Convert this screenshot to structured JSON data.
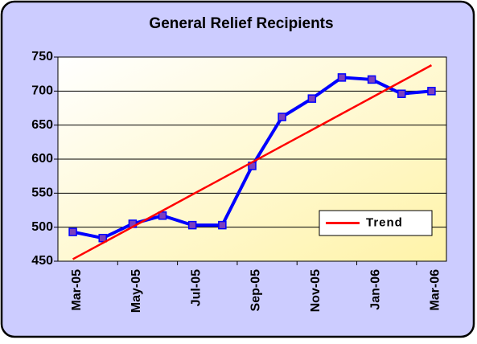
{
  "chart_data": {
    "type": "line",
    "title": "General Relief Recipients",
    "categories": [
      "Mar-05",
      null,
      "May-05",
      null,
      "Jul-05",
      null,
      "Sep-05",
      null,
      "Nov-05",
      null,
      "Jan-06",
      null,
      "Mar-06"
    ],
    "series": [
      {
        "color": "#0000ff",
        "marker_color": "#7b3fbf",
        "values": [
          493,
          484,
          505,
          517,
          503,
          503,
          590,
          662,
          689,
          720,
          717,
          696,
          700
        ]
      },
      {
        "name": "Trend",
        "color": "#ff0000",
        "values": [
          453,
          476.75,
          500.5,
          524.25,
          548,
          571.75,
          595.5,
          619.25,
          643,
          666.75,
          690.5,
          714.25,
          738
        ]
      }
    ],
    "ylim": [
      450,
      750
    ],
    "yticks": [
      450,
      500,
      550,
      600,
      650,
      700,
      750
    ],
    "grid": true,
    "legend": "lower right"
  }
}
